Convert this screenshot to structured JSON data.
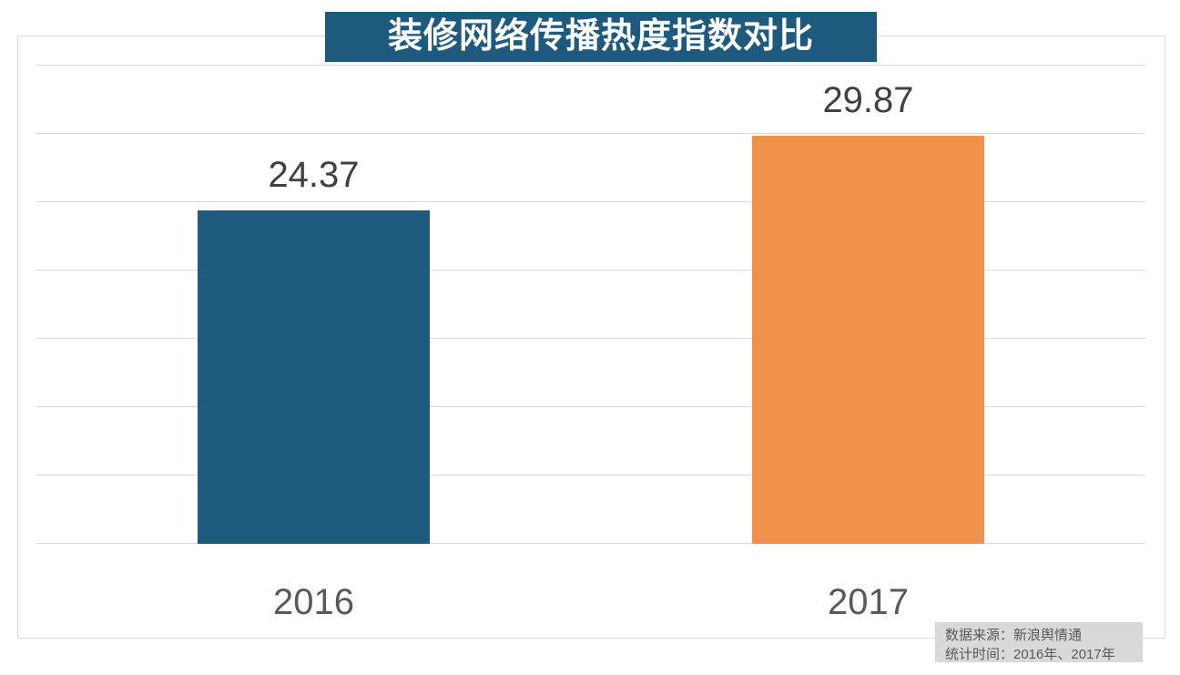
{
  "chart_data": {
    "type": "bar",
    "title": "装修网络传播热度指数对比",
    "categories": [
      "2016",
      "2017"
    ],
    "values": [
      24.37,
      29.87
    ],
    "value_labels": [
      "24.37",
      "29.87"
    ],
    "bar_colors": [
      "#1d5a7d",
      "#f0914b"
    ],
    "xlabel": "",
    "ylabel": "",
    "ylim": [
      0,
      35
    ],
    "gridline_step": 5,
    "grid": true,
    "legend_position": "none",
    "axis_tick_labels_visible": false
  },
  "source_box": {
    "line1": "数据来源：新浪舆情通",
    "line2": "统计时间：2016年、2017年"
  },
  "colors": {
    "title_background": "#1d5a7d",
    "title_text": "#ffffff",
    "bar_2016": "#1d5a7d",
    "bar_2017": "#f0914b",
    "gridline": "#d9d9d9",
    "frame_border": "#d9d9d9",
    "value_text": "#404040",
    "category_text": "#595959",
    "source_background": "#d9d9d9",
    "source_text": "#595959"
  }
}
